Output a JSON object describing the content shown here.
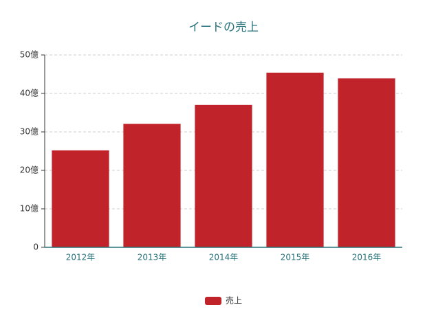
{
  "chart_data": {
    "type": "bar",
    "title": "イードの売上",
    "categories": [
      "2012年",
      "2013年",
      "2014年",
      "2015年",
      "2016年"
    ],
    "series": [
      {
        "name": "売上",
        "color": "#c1232b",
        "values": [
          25.2,
          32.1,
          37.0,
          45.4,
          43.9
        ]
      }
    ],
    "ylim": [
      0,
      50
    ],
    "yticks": [
      0,
      {
        "value": 10,
        "label": "10億"
      },
      {
        "value": 20,
        "label": "20億"
      },
      {
        "value": 30,
        "label": "30億"
      },
      {
        "value": 40,
        "label": "40億"
      },
      {
        "value": 50,
        "label": "50億"
      }
    ],
    "grid": true,
    "legend": "bottom"
  }
}
